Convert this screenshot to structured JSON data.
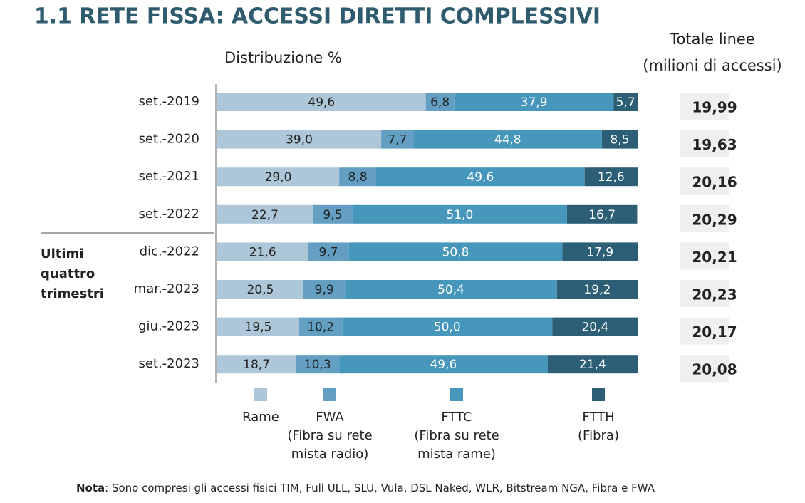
{
  "chart_data": {
    "type": "stacked-bar-horizontal",
    "title": "1.1 RETE FISSA: ACCESSI DIRETTI COMPLESSIVI",
    "subtitle": "Distribuzione %",
    "totals_header": [
      "Totale linee",
      "(milioni di accessi)"
    ],
    "group_label": [
      "Ultimi",
      "quattro",
      "trimestri"
    ],
    "categories": [
      "set.-2019",
      "set.-2020",
      "set.-2021",
      "set.-2022",
      "dic.-2022",
      "mar.-2023",
      "giu.-2023",
      "set.-2023"
    ],
    "xlim": [
      0,
      100
    ],
    "series": [
      {
        "name": "Rame",
        "color": "#adc7d8",
        "label_color": "#222222",
        "values": [
          49.6,
          39.0,
          29.0,
          22.7,
          21.6,
          20.5,
          19.5,
          18.7
        ],
        "value_labels": [
          "49,6",
          "39,0",
          "29,0",
          "22,7",
          "21,6",
          "20,5",
          "19,5",
          "18,7"
        ]
      },
      {
        "name": "FWA",
        "legend_lines": [
          "(Fibra su rete",
          "mista radio)"
        ],
        "color": "#629fc2",
        "label_color": "#222222",
        "values": [
          6.8,
          7.7,
          8.8,
          9.5,
          9.7,
          9.9,
          10.2,
          10.3
        ],
        "value_labels": [
          "6,8",
          "7,7",
          "8,8",
          "9,5",
          "9,7",
          "9,9",
          "10,2",
          "10,3"
        ]
      },
      {
        "name": "FTTC",
        "legend_lines": [
          "(Fibra su rete",
          "mista rame)"
        ],
        "color": "#4797bc",
        "label_color": "#ffffff",
        "values": [
          37.9,
          44.8,
          49.6,
          51.0,
          50.8,
          50.4,
          50.0,
          49.6
        ],
        "value_labels": [
          "37,9",
          "44,8",
          "49,6",
          "51,0",
          "50,8",
          "50,4",
          "50,0",
          "49,6"
        ]
      },
      {
        "name": "FTTH",
        "legend_lines": [
          "(Fibra)"
        ],
        "color": "#2c5e76",
        "label_color": "#ffffff",
        "values": [
          5.7,
          8.5,
          12.6,
          16.7,
          17.9,
          19.2,
          20.4,
          21.4
        ],
        "value_labels": [
          "5,7",
          "8,5",
          "12,6",
          "16,7",
          "17,9",
          "19,2",
          "20,4",
          "21,4"
        ]
      }
    ],
    "totals": {
      "values": [
        19.99,
        19.63,
        20.16,
        20.29,
        20.21,
        20.23,
        20.17,
        20.08
      ],
      "value_labels": [
        "19,99",
        "19,63",
        "20,16",
        "20,29",
        "20,21",
        "20,23",
        "20,17",
        "20,08"
      ]
    },
    "note": {
      "label": "Nota",
      "text": ": Sono compresi gli accessi fisici TIM, Full ULL, SLU, Vula, DSL Naked, WLR, Bitstream NGA, Fibra e FWA"
    }
  }
}
